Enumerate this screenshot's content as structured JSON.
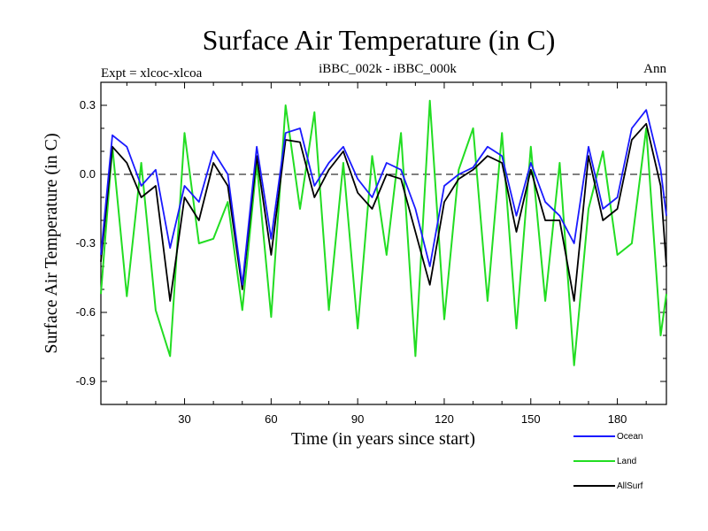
{
  "chart_data": {
    "type": "line",
    "title": "Surface Air Temperature (in C)",
    "subtitle_left": "Expt = xlcoc-xlcoa",
    "subtitle_center": "iBBC_002k - iBBC_000k",
    "subtitle_right": "Ann",
    "xlabel": "Time (in years since start)",
    "ylabel": "Surface Air Temperature (in C)",
    "xlim": [
      1,
      197
    ],
    "ylim": [
      -1.0,
      0.4
    ],
    "xticks": [
      30,
      60,
      90,
      120,
      150,
      180
    ],
    "yticks": [
      -0.9,
      -0.6,
      -0.3,
      0.0,
      0.3
    ],
    "ytick_labels": [
      "-0.9",
      "-0.6",
      "-0.3",
      "0.0",
      "0.3"
    ],
    "reference_line": 0.0,
    "x": [
      1,
      5,
      10,
      15,
      20,
      25,
      30,
      35,
      40,
      45,
      50,
      55,
      60,
      65,
      70,
      75,
      80,
      85,
      90,
      95,
      100,
      105,
      110,
      115,
      120,
      125,
      130,
      135,
      140,
      145,
      150,
      155,
      160,
      165,
      170,
      175,
      180,
      185,
      190,
      195,
      197
    ],
    "series": [
      {
        "name": "Ocean",
        "color": "#1a1aff",
        "values": [
          -0.35,
          0.17,
          0.12,
          -0.05,
          0.02,
          -0.32,
          -0.05,
          -0.12,
          0.1,
          0.0,
          -0.48,
          0.12,
          -0.28,
          0.18,
          0.2,
          -0.05,
          0.05,
          0.12,
          -0.02,
          -0.1,
          0.05,
          0.02,
          -0.15,
          -0.4,
          -0.05,
          0.0,
          0.03,
          0.12,
          0.08,
          -0.18,
          0.05,
          -0.12,
          -0.18,
          -0.3,
          0.12,
          -0.15,
          -0.1,
          0.2,
          0.28,
          0.02,
          -0.18
        ]
      },
      {
        "name": "Land",
        "color": "#22dd22",
        "values": [
          -0.52,
          0.12,
          -0.53,
          0.05,
          -0.59,
          -0.79,
          0.18,
          -0.3,
          -0.28,
          -0.12,
          -0.59,
          0.05,
          -0.62,
          0.3,
          -0.15,
          0.27,
          -0.59,
          0.05,
          -0.67,
          0.08,
          -0.35,
          0.18,
          -0.79,
          0.32,
          -0.63,
          0.02,
          0.2,
          -0.55,
          0.18,
          -0.67,
          0.12,
          -0.55,
          0.05,
          -0.83,
          -0.15,
          0.1,
          -0.35,
          -0.3,
          0.2,
          -0.7,
          -0.52
        ]
      },
      {
        "name": "AllSurf",
        "color": "#000000",
        "values": [
          -0.38,
          0.12,
          0.05,
          -0.1,
          -0.05,
          -0.55,
          -0.1,
          -0.2,
          0.05,
          -0.05,
          -0.5,
          0.08,
          -0.35,
          0.15,
          0.14,
          -0.1,
          0.02,
          0.1,
          -0.08,
          -0.15,
          0.0,
          -0.02,
          -0.25,
          -0.48,
          -0.12,
          -0.02,
          0.02,
          0.08,
          0.05,
          -0.25,
          0.02,
          -0.2,
          -0.2,
          -0.55,
          0.08,
          -0.2,
          -0.15,
          0.15,
          0.22,
          -0.05,
          -0.4
        ]
      }
    ],
    "legend": [
      {
        "label": "Ocean",
        "color": "#1a1aff"
      },
      {
        "label": "Land",
        "color": "#22dd22"
      },
      {
        "label": "AllSurf",
        "color": "#000000"
      }
    ],
    "legend_position": "bottom-right"
  }
}
